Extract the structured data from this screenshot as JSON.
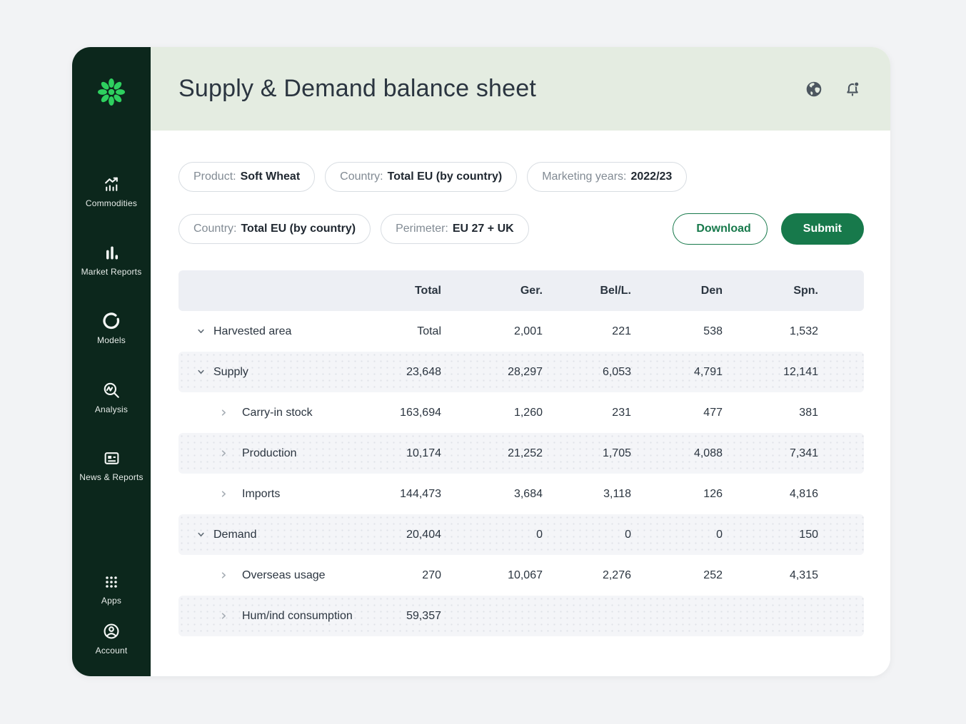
{
  "app": {
    "logo_icon": "brand-flower-logo"
  },
  "sidebar": {
    "items": [
      {
        "label": "Commodities",
        "icon": "trend-bars-icon"
      },
      {
        "label": "Market Reports",
        "icon": "bar-chart-icon"
      },
      {
        "label": "Models",
        "icon": "open-circle-icon"
      },
      {
        "label": "Analysis",
        "icon": "magnifier-wave-icon"
      },
      {
        "label": "News & Reports",
        "icon": "newspaper-icon"
      },
      {
        "label": "Apps",
        "icon": "grid-dots-icon"
      },
      {
        "label": "Account",
        "icon": "person-circle-icon"
      }
    ]
  },
  "header": {
    "title": "Supply & Demand balance sheet",
    "icons": [
      "globe-icon",
      "bell-notification-icon"
    ]
  },
  "filters": {
    "row1": [
      {
        "label": "Product:",
        "value": "Soft Wheat"
      },
      {
        "label": "Country:",
        "value": "Total EU (by country)"
      },
      {
        "label": "Marketing years:",
        "value": "2022/23"
      }
    ],
    "row2": [
      {
        "label": "Country:",
        "value": "Total EU (by country)"
      },
      {
        "label": "Perimeter:",
        "value": "EU 27 + UK"
      }
    ],
    "download_label": "Download",
    "submit_label": "Submit"
  },
  "table": {
    "columns": [
      "",
      "Total",
      "Ger.",
      "Bel/L.",
      "Den",
      "Spn."
    ],
    "rows": [
      {
        "label": "Harvested area",
        "level": 0,
        "chevron": "down",
        "values": [
          "Total",
          "2,001",
          "221",
          "538",
          "1,532"
        ]
      },
      {
        "label": "Supply",
        "level": 0,
        "chevron": "down",
        "values": [
          "23,648",
          "28,297",
          "6,053",
          "4,791",
          "12,141"
        ]
      },
      {
        "label": "Carry-in stock",
        "level": 1,
        "chevron": "right",
        "values": [
          "163,694",
          "1,260",
          "231",
          "477",
          "381"
        ]
      },
      {
        "label": "Production",
        "level": 1,
        "chevron": "right",
        "values": [
          "10,174",
          "21,252",
          "1,705",
          "4,088",
          "7,341"
        ]
      },
      {
        "label": "Imports",
        "level": 1,
        "chevron": "right",
        "values": [
          "144,473",
          "3,684",
          "3,118",
          "126",
          "4,816"
        ]
      },
      {
        "label": "Demand",
        "level": 0,
        "chevron": "down",
        "values": [
          "20,404",
          "0",
          "0",
          "0",
          "150"
        ]
      },
      {
        "label": "Overseas usage",
        "level": 1,
        "chevron": "right",
        "values": [
          "270",
          "10,067",
          "2,276",
          "252",
          "4,315"
        ]
      },
      {
        "label": "Hum/ind consumption",
        "level": 1,
        "chevron": "right",
        "values": [
          "59,357",
          "",
          "",
          "",
          ""
        ]
      }
    ]
  },
  "colors": {
    "accent_green": "#17794b",
    "logo_green": "#2ed05f",
    "sidebar_bg": "#0c271c",
    "header_band": "#e4ece1",
    "table_header_bg": "#edeff4",
    "stripe_row_bg": "#f4f5f8"
  }
}
